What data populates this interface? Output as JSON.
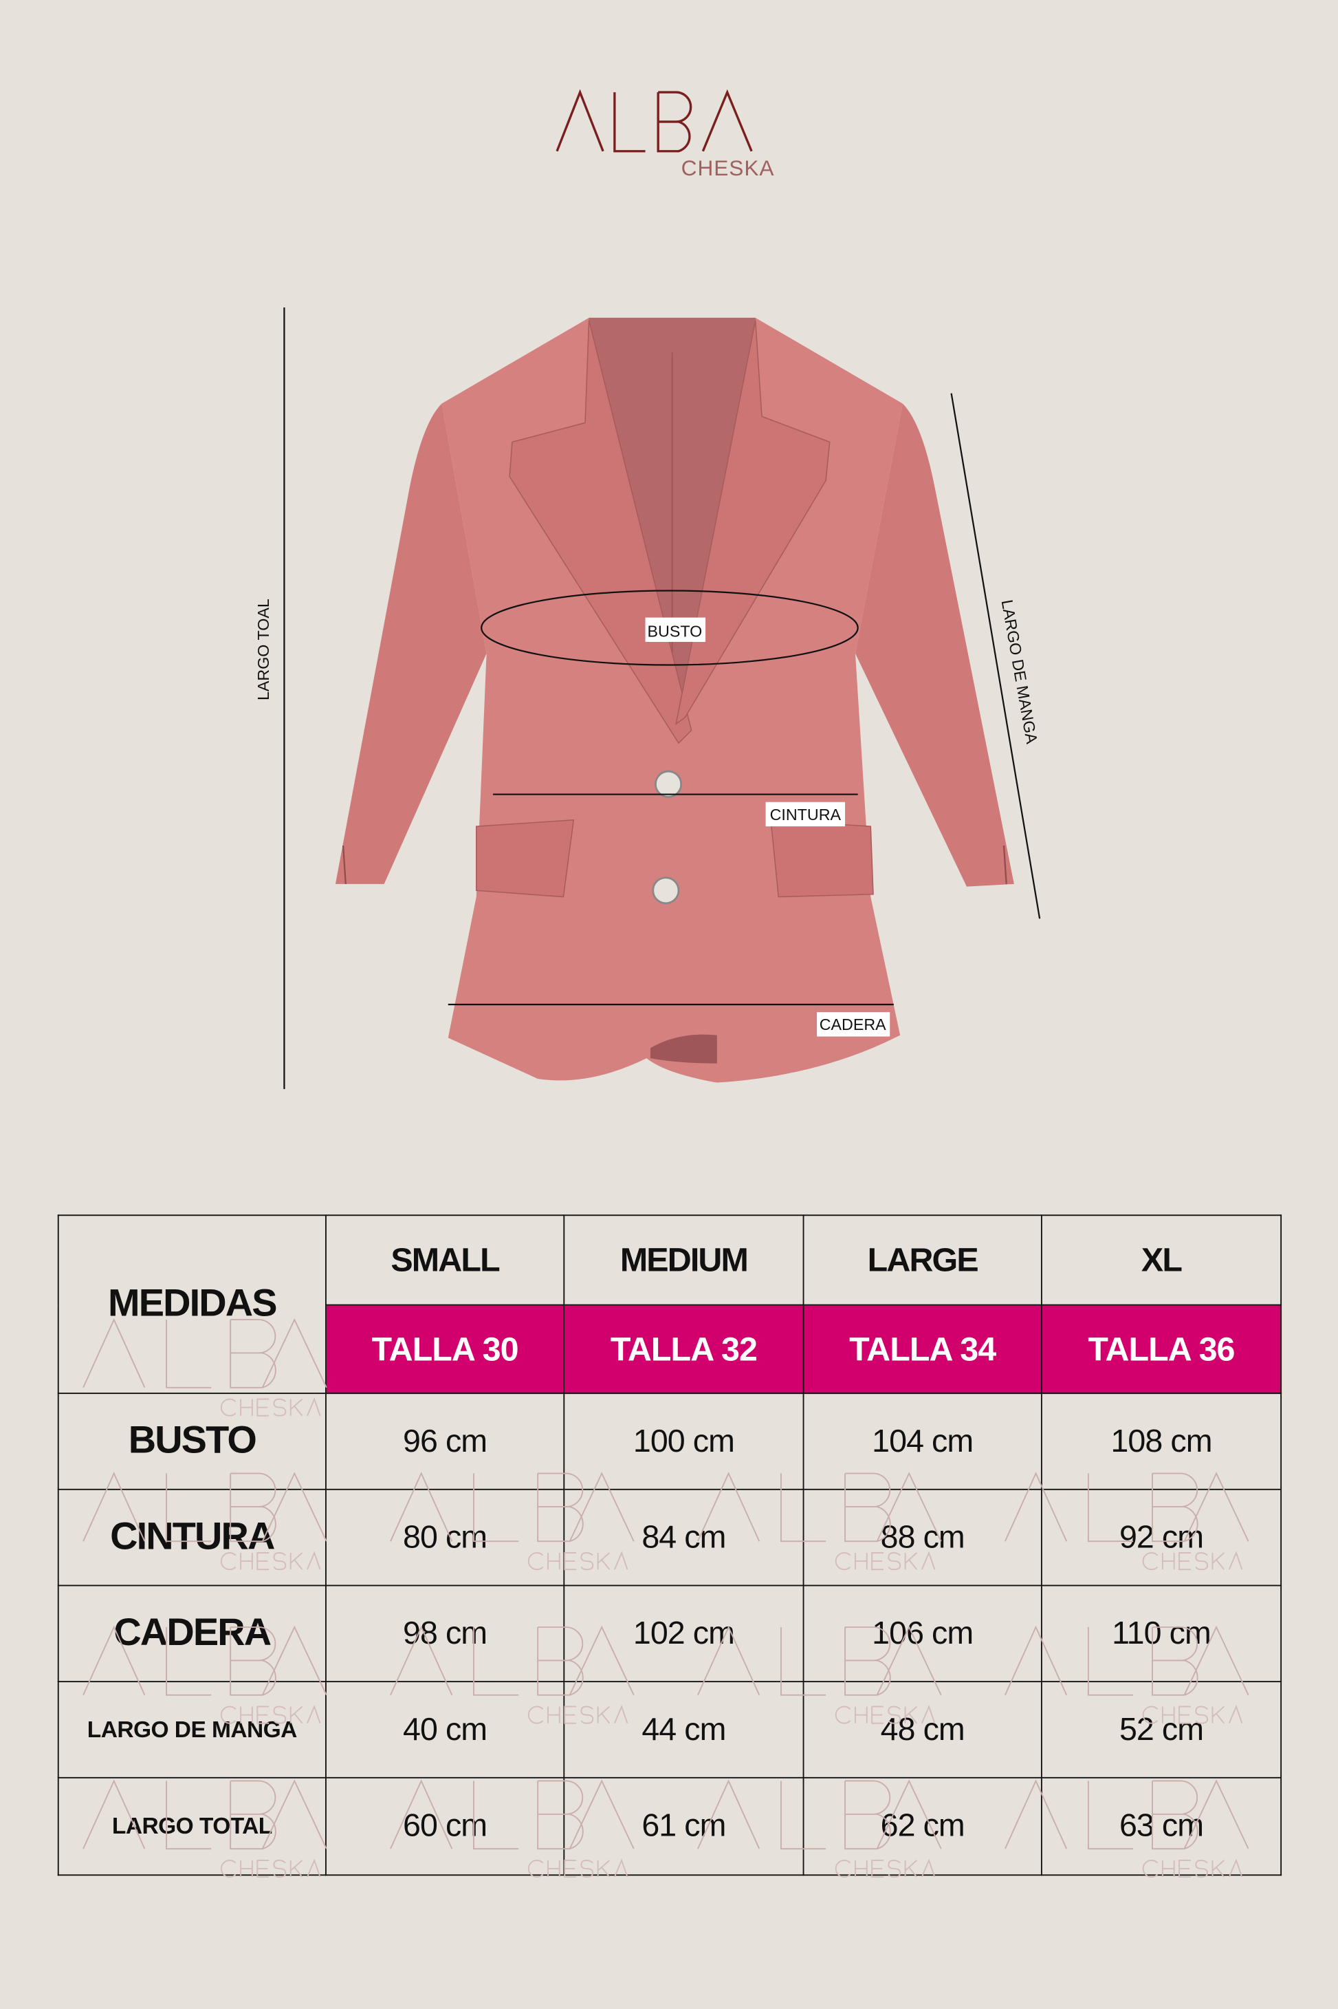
{
  "logo": {
    "brand": "ALBA",
    "sub": "CHESKA",
    "color": "#7a1f1f"
  },
  "diagram": {
    "labels": {
      "busto": "BUSTO",
      "cintura": "CINTURA",
      "cadera": "CADERA",
      "largo_total": "LARGO TOAL",
      "largo_manga": "LARGO DE MANGA"
    },
    "jacket_color": "#d0787a"
  },
  "table": {
    "corner": "MEDIDAS",
    "sizes": [
      {
        "name": "SMALL",
        "talla": "TALLA 30"
      },
      {
        "name": "MEDIUM",
        "talla": "TALLA 32"
      },
      {
        "name": "LARGE",
        "talla": "TALLA 34"
      },
      {
        "name": "XL",
        "talla": "TALLA 36"
      }
    ],
    "rows": [
      {
        "label": "BUSTO",
        "values": [
          "96 cm",
          "100 cm",
          "104 cm",
          "108 cm"
        ]
      },
      {
        "label": "CINTURA",
        "values": [
          "80 cm",
          "84 cm",
          "88 cm",
          "92 cm"
        ]
      },
      {
        "label": "CADERA",
        "values": [
          "98 cm",
          "102 cm",
          "106 cm",
          "110 cm"
        ]
      },
      {
        "label": "LARGO DE MANGA",
        "values": [
          "40 cm",
          "44 cm",
          "48 cm",
          "52 cm"
        ]
      },
      {
        "label": "LARGO TOTAL",
        "values": [
          "60 cm",
          "61 cm",
          "62 cm",
          "63 cm"
        ]
      }
    ],
    "accent": "#d2006d"
  }
}
